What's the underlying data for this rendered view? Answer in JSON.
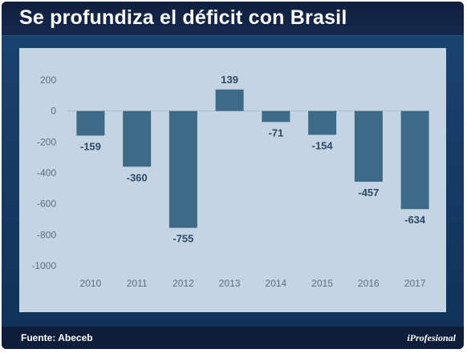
{
  "header": {
    "title": "Se profundiza el déficit con Brasil"
  },
  "footer": {
    "source": "Fuente: Abeceb",
    "logo": "iProfesional"
  },
  "colors": {
    "bar": "#3d6a86",
    "panel": "#c4d4e3",
    "frame": "#123a63",
    "title_bar": "#12254a"
  },
  "chart_data": {
    "type": "bar",
    "title": "Se profundiza el déficit con Brasil",
    "xlabel": "",
    "ylabel": "",
    "categories": [
      "2010",
      "2011",
      "2012",
      "2013",
      "2014",
      "2015",
      "2016",
      "2017"
    ],
    "values": [
      -159,
      -360,
      -755,
      139,
      -71,
      -154,
      -457,
      -634
    ],
    "data_labels": [
      "-159",
      "-360",
      "-755",
      "139",
      "-71",
      "-154",
      "-457",
      "-634"
    ],
    "yticks": [
      200,
      0,
      -200,
      -400,
      -600,
      -800,
      -1000
    ],
    "ylim": [
      -1000,
      200
    ],
    "grid": false,
    "zero_line": true,
    "legend": "none"
  }
}
